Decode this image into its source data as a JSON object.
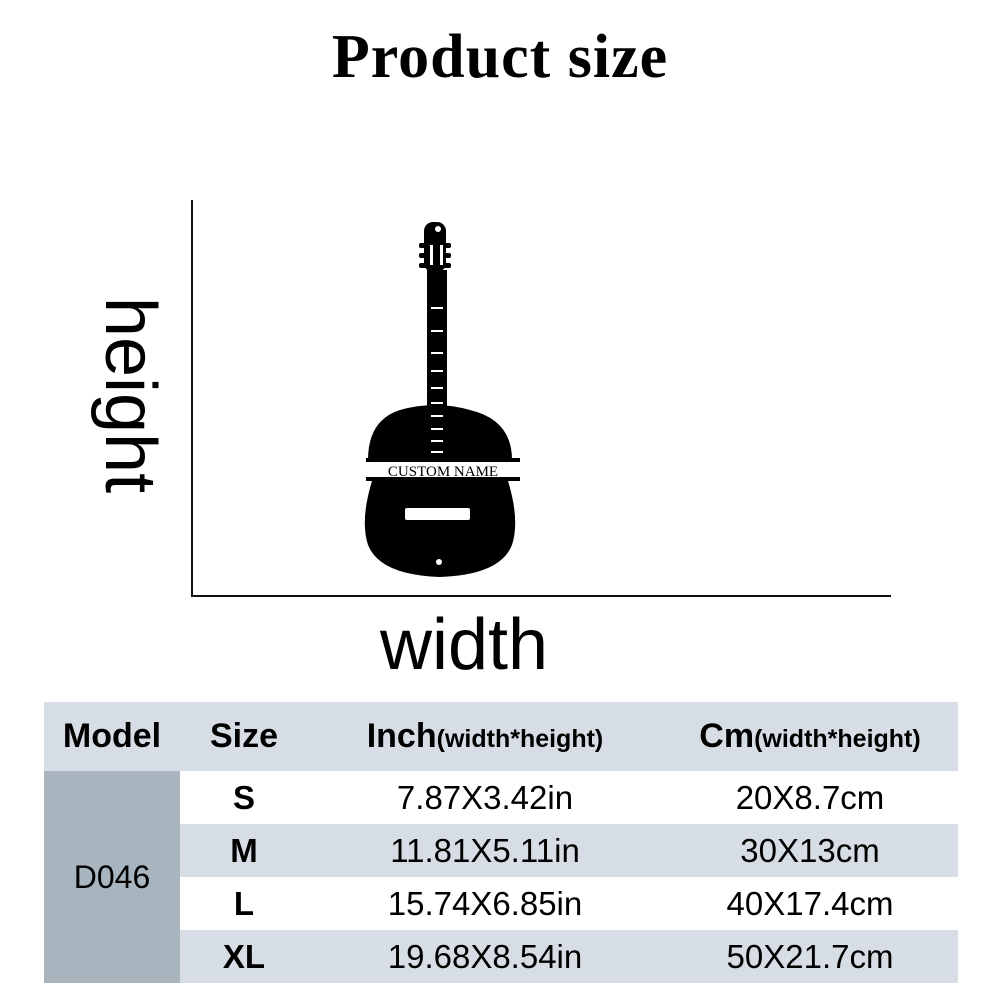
{
  "title": "Product size",
  "diagram": {
    "height_label": "height",
    "width_label": "width",
    "sign_text": "CUSTOM NAME"
  },
  "table": {
    "headers": {
      "model": "Model",
      "size": "Size",
      "inch": "Inch",
      "inch_sub": "(width*height)",
      "cm": "Cm",
      "cm_sub": "(width*height)"
    },
    "model": "D046",
    "rows": [
      {
        "size": "S",
        "inch": "7.87X3.42in",
        "cm": "20X8.7cm"
      },
      {
        "size": "M",
        "inch": "11.81X5.11in",
        "cm": "30X13cm"
      },
      {
        "size": "L",
        "inch": "15.74X6.85in",
        "cm": "40X17.4cm"
      },
      {
        "size": "XL",
        "inch": "19.68X8.54in",
        "cm": "50X21.7cm"
      }
    ]
  }
}
